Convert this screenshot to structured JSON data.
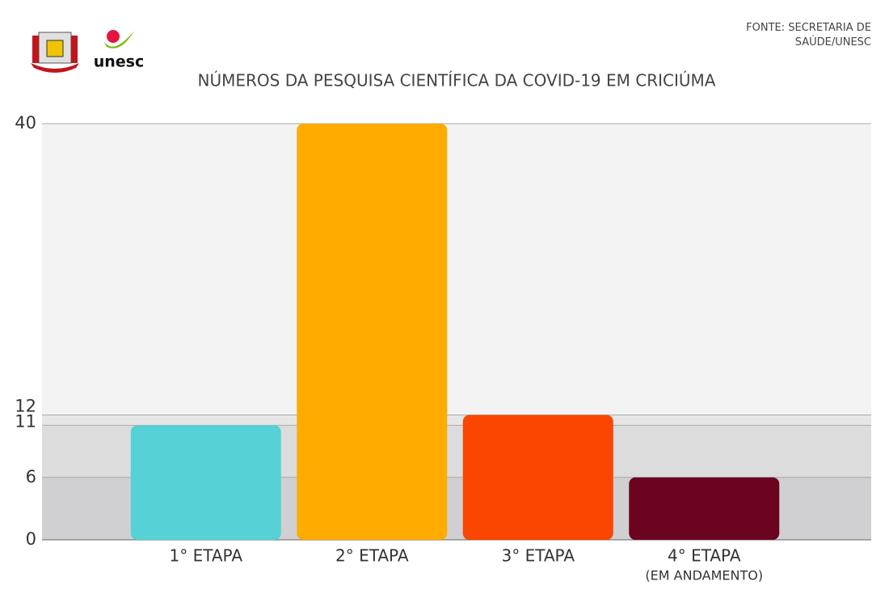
{
  "chart_data": {
    "type": "bar",
    "title": "NÚMEROS DA PESQUISA CIENTÍFICA DA COVID-19 EM CRICIÚMA",
    "source": "FONTE: SECRETARIA DE SAÚDE/UNESC",
    "logo_text": "unesc",
    "categories": [
      "1° ETAPA",
      "2° ETAPA",
      "3° ETAPA",
      "4° ETAPA"
    ],
    "x_note": "(EM ANDAMENTO)",
    "values": [
      11,
      40,
      12,
      6
    ],
    "colors": [
      "#56d1d5",
      "#ffab00",
      "#fa4600",
      "#6b0420"
    ],
    "ylim": [
      0,
      40
    ],
    "yticks": [
      0,
      6,
      11,
      12,
      40
    ],
    "grid": true
  }
}
